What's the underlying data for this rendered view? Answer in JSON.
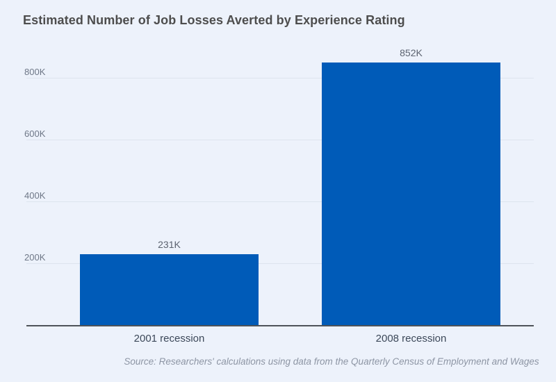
{
  "page": {
    "title": "Estimated Number of Job Losses Averted by Experience Rating",
    "source_note": "Source: Researchers' calculations using data from the Quarterly Census of Employment and Wages"
  },
  "colors": {
    "background": "#edf2fb",
    "bar": "#005bb8",
    "gridline": "#dde4ee",
    "axis_line": "#4d5258",
    "title_text": "#4d4d4d",
    "tick_text": "#6e7787",
    "value_text": "#5c6370",
    "category_text": "#3c4859",
    "source_text": "#8d95a4"
  },
  "chart_data": {
    "type": "bar",
    "title": "Estimated Number of Job Losses Averted by Experience Rating",
    "categories": [
      "2001 recession",
      "2008 recession"
    ],
    "values": [
      231000,
      852000
    ],
    "value_labels": [
      "231K",
      "852K"
    ],
    "y_ticks": [
      {
        "value": 200000,
        "label": "200K"
      },
      {
        "value": 400000,
        "label": "400K"
      },
      {
        "value": 600000,
        "label": "600K"
      },
      {
        "value": 800000,
        "label": "800K"
      }
    ],
    "ylim": [
      0,
      900000
    ],
    "xlabel": "",
    "ylabel": "",
    "grid": "horizontal-only",
    "legend": "none",
    "bar_color": "#005bb8",
    "source": "Source: Researchers' calculations using data from the Quarterly Census of Employment and Wages"
  }
}
